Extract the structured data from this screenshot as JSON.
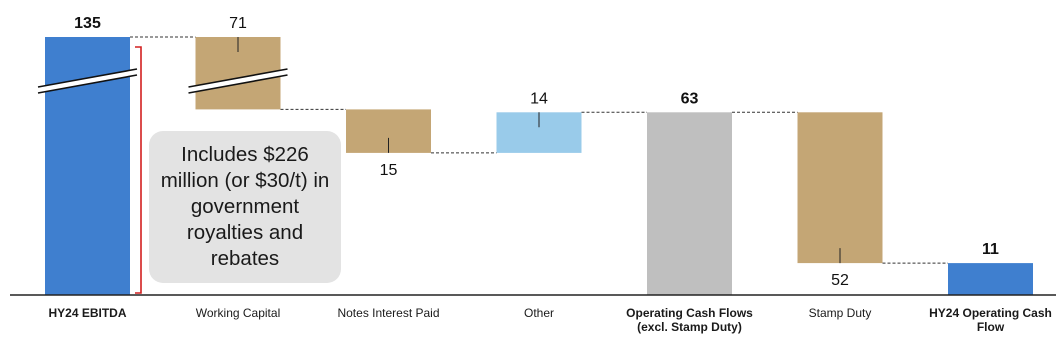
{
  "chart_data": {
    "type": "bar",
    "subtype": "waterfall",
    "title": "",
    "categories": [
      "HY24 EBITDA",
      "Working Capital",
      "Notes Interest Paid",
      "Other",
      "Operating Cash Flows (excl. Stamp Duty)",
      "Stamp Duty",
      "HY24 Operating Cash Flow"
    ],
    "values": [
      135,
      -71,
      -15,
      14,
      63,
      -52,
      11
    ],
    "value_labels": [
      "135",
      "71",
      "15",
      "14",
      "63",
      "52",
      "11"
    ],
    "bar_kinds": [
      "total",
      "decrease",
      "decrease",
      "increase",
      "subtotal",
      "decrease",
      "total"
    ],
    "bold_categories": [
      true,
      false,
      false,
      false,
      true,
      false,
      true
    ],
    "axis_break": true,
    "ylim": [
      0,
      135
    ],
    "colors": {
      "total": "#3f7fcf",
      "decrease": "#c4a675",
      "increase": "#99cbea",
      "subtotal": "#bfbfbf",
      "bracket": "#d22020",
      "connector": "#333333",
      "callout_bg": "#e3e3e3"
    }
  },
  "callout": {
    "text": "Includes $226 million (or $30/t) in government royalties and rebates"
  }
}
